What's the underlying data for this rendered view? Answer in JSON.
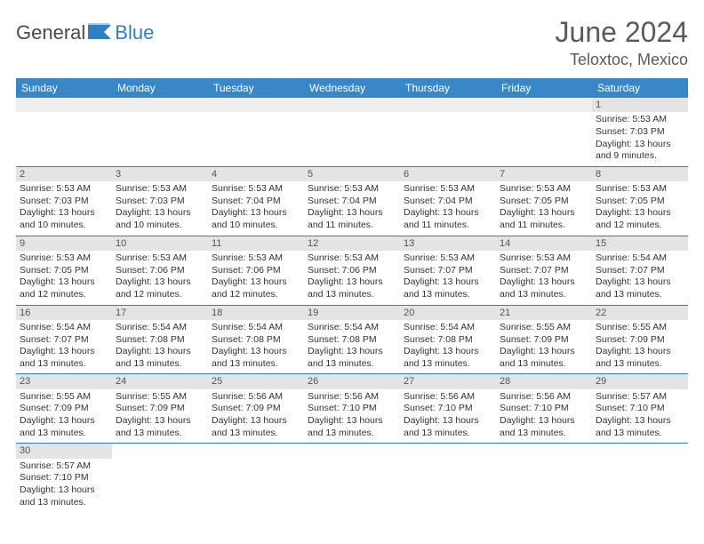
{
  "brand": {
    "general": "General",
    "blue": "Blue"
  },
  "title": "June 2024",
  "location": "Teloxtoc, Mexico",
  "colors": {
    "header_bg": "#3a87c7",
    "header_text": "#ffffff",
    "daynum_bg": "#e4e4e4",
    "border": "#2f7fc2",
    "brand_blue": "#2f7fc2"
  },
  "day_headers": [
    "Sunday",
    "Monday",
    "Tuesday",
    "Wednesday",
    "Thursday",
    "Friday",
    "Saturday"
  ],
  "weeks": [
    [
      null,
      null,
      null,
      null,
      null,
      null,
      {
        "n": "1",
        "sr": "Sunrise: 5:53 AM",
        "ss": "Sunset: 7:03 PM",
        "dl": "Daylight: 13 hours and 9 minutes."
      }
    ],
    [
      {
        "n": "2",
        "sr": "Sunrise: 5:53 AM",
        "ss": "Sunset: 7:03 PM",
        "dl": "Daylight: 13 hours and 10 minutes."
      },
      {
        "n": "3",
        "sr": "Sunrise: 5:53 AM",
        "ss": "Sunset: 7:03 PM",
        "dl": "Daylight: 13 hours and 10 minutes."
      },
      {
        "n": "4",
        "sr": "Sunrise: 5:53 AM",
        "ss": "Sunset: 7:04 PM",
        "dl": "Daylight: 13 hours and 10 minutes."
      },
      {
        "n": "5",
        "sr": "Sunrise: 5:53 AM",
        "ss": "Sunset: 7:04 PM",
        "dl": "Daylight: 13 hours and 11 minutes."
      },
      {
        "n": "6",
        "sr": "Sunrise: 5:53 AM",
        "ss": "Sunset: 7:04 PM",
        "dl": "Daylight: 13 hours and 11 minutes."
      },
      {
        "n": "7",
        "sr": "Sunrise: 5:53 AM",
        "ss": "Sunset: 7:05 PM",
        "dl": "Daylight: 13 hours and 11 minutes."
      },
      {
        "n": "8",
        "sr": "Sunrise: 5:53 AM",
        "ss": "Sunset: 7:05 PM",
        "dl": "Daylight: 13 hours and 12 minutes."
      }
    ],
    [
      {
        "n": "9",
        "sr": "Sunrise: 5:53 AM",
        "ss": "Sunset: 7:05 PM",
        "dl": "Daylight: 13 hours and 12 minutes."
      },
      {
        "n": "10",
        "sr": "Sunrise: 5:53 AM",
        "ss": "Sunset: 7:06 PM",
        "dl": "Daylight: 13 hours and 12 minutes."
      },
      {
        "n": "11",
        "sr": "Sunrise: 5:53 AM",
        "ss": "Sunset: 7:06 PM",
        "dl": "Daylight: 13 hours and 12 minutes."
      },
      {
        "n": "12",
        "sr": "Sunrise: 5:53 AM",
        "ss": "Sunset: 7:06 PM",
        "dl": "Daylight: 13 hours and 13 minutes."
      },
      {
        "n": "13",
        "sr": "Sunrise: 5:53 AM",
        "ss": "Sunset: 7:07 PM",
        "dl": "Daylight: 13 hours and 13 minutes."
      },
      {
        "n": "14",
        "sr": "Sunrise: 5:53 AM",
        "ss": "Sunset: 7:07 PM",
        "dl": "Daylight: 13 hours and 13 minutes."
      },
      {
        "n": "15",
        "sr": "Sunrise: 5:54 AM",
        "ss": "Sunset: 7:07 PM",
        "dl": "Daylight: 13 hours and 13 minutes."
      }
    ],
    [
      {
        "n": "16",
        "sr": "Sunrise: 5:54 AM",
        "ss": "Sunset: 7:07 PM",
        "dl": "Daylight: 13 hours and 13 minutes."
      },
      {
        "n": "17",
        "sr": "Sunrise: 5:54 AM",
        "ss": "Sunset: 7:08 PM",
        "dl": "Daylight: 13 hours and 13 minutes."
      },
      {
        "n": "18",
        "sr": "Sunrise: 5:54 AM",
        "ss": "Sunset: 7:08 PM",
        "dl": "Daylight: 13 hours and 13 minutes."
      },
      {
        "n": "19",
        "sr": "Sunrise: 5:54 AM",
        "ss": "Sunset: 7:08 PM",
        "dl": "Daylight: 13 hours and 13 minutes."
      },
      {
        "n": "20",
        "sr": "Sunrise: 5:54 AM",
        "ss": "Sunset: 7:08 PM",
        "dl": "Daylight: 13 hours and 13 minutes."
      },
      {
        "n": "21",
        "sr": "Sunrise: 5:55 AM",
        "ss": "Sunset: 7:09 PM",
        "dl": "Daylight: 13 hours and 13 minutes."
      },
      {
        "n": "22",
        "sr": "Sunrise: 5:55 AM",
        "ss": "Sunset: 7:09 PM",
        "dl": "Daylight: 13 hours and 13 minutes."
      }
    ],
    [
      {
        "n": "23",
        "sr": "Sunrise: 5:55 AM",
        "ss": "Sunset: 7:09 PM",
        "dl": "Daylight: 13 hours and 13 minutes."
      },
      {
        "n": "24",
        "sr": "Sunrise: 5:55 AM",
        "ss": "Sunset: 7:09 PM",
        "dl": "Daylight: 13 hours and 13 minutes."
      },
      {
        "n": "25",
        "sr": "Sunrise: 5:56 AM",
        "ss": "Sunset: 7:09 PM",
        "dl": "Daylight: 13 hours and 13 minutes."
      },
      {
        "n": "26",
        "sr": "Sunrise: 5:56 AM",
        "ss": "Sunset: 7:10 PM",
        "dl": "Daylight: 13 hours and 13 minutes."
      },
      {
        "n": "27",
        "sr": "Sunrise: 5:56 AM",
        "ss": "Sunset: 7:10 PM",
        "dl": "Daylight: 13 hours and 13 minutes."
      },
      {
        "n": "28",
        "sr": "Sunrise: 5:56 AM",
        "ss": "Sunset: 7:10 PM",
        "dl": "Daylight: 13 hours and 13 minutes."
      },
      {
        "n": "29",
        "sr": "Sunrise: 5:57 AM",
        "ss": "Sunset: 7:10 PM",
        "dl": "Daylight: 13 hours and 13 minutes."
      }
    ],
    [
      {
        "n": "30",
        "sr": "Sunrise: 5:57 AM",
        "ss": "Sunset: 7:10 PM",
        "dl": "Daylight: 13 hours and 13 minutes."
      },
      null,
      null,
      null,
      null,
      null,
      null
    ]
  ]
}
